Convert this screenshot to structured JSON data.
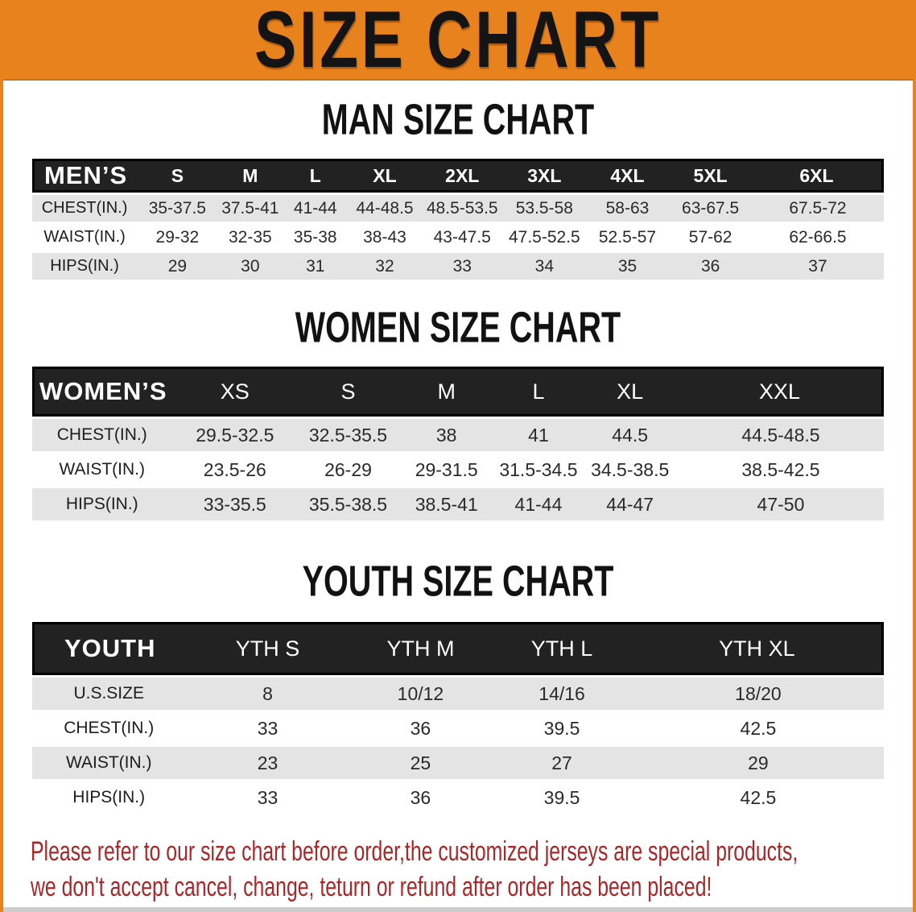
{
  "banner": {
    "title": "SIZE CHART"
  },
  "colors": {
    "banner-orange": "#E8821C",
    "banner-border": "#CF7013",
    "header-black": "#1B1B1B",
    "header-fill": "#222222",
    "row-gray": "#E4E4E4",
    "footer-red": "#A8282A",
    "strip-gray": "#CDCDCD",
    "title-black": "#121212"
  },
  "sections": {
    "men": {
      "title": "MAN SIZE CHART",
      "table": {
        "header_label": "MEN’S",
        "columns": [
          "S",
          "M",
          "L",
          "XL",
          "2XL",
          "3XL",
          "4XL",
          "5XL",
          "6XL"
        ],
        "rows": [
          {
            "label": "CHEST(IN.)",
            "values": [
              "35-37.5",
              "37.5-41",
              "41-44",
              "44-48.5",
              "48.5-53.5",
              "53.5-58",
              "58-63",
              "63-67.5",
              "67.5-72"
            ]
          },
          {
            "label": "WAIST(IN.)",
            "values": [
              "29-32",
              "32-35",
              "35-38",
              "38-43",
              "43-47.5",
              "47.5-52.5",
              "52.5-57",
              "57-62",
              "62-66.5"
            ]
          },
          {
            "label": "HIPS(IN.)",
            "values": [
              "29",
              "30",
              "31",
              "32",
              "33",
              "34",
              "35",
              "36",
              "37"
            ]
          }
        ]
      }
    },
    "women": {
      "title": "WOMEN SIZE CHART",
      "table": {
        "header_label": "WOMEN’S",
        "columns": [
          "XS",
          "S",
          "M",
          "L",
          "XL",
          "XXL"
        ],
        "rows": [
          {
            "label": "CHEST(IN.)",
            "values": [
              "29.5-32.5",
              "32.5-35.5",
              "38",
              "41",
              "44.5",
              "44.5-48.5"
            ]
          },
          {
            "label": "WAIST(IN.)",
            "values": [
              "23.5-26",
              "26-29",
              "29-31.5",
              "31.5-34.5",
              "34.5-38.5",
              "38.5-42.5"
            ]
          },
          {
            "label": "HIPS(IN.)",
            "values": [
              "33-35.5",
              "35.5-38.5",
              "38.5-41",
              "41-44",
              "44-47",
              "47-50"
            ]
          }
        ]
      }
    },
    "youth": {
      "title": "YOUTH SIZE CHART",
      "table": {
        "header_label": "YOUTH",
        "columns": [
          "YTH S",
          "YTH M",
          "YTH L",
          "YTH XL"
        ],
        "rows": [
          {
            "label": "U.S.SIZE",
            "values": [
              "8",
              "10/12",
              "14/16",
              "18/20"
            ]
          },
          {
            "label": "CHEST(IN.)",
            "values": [
              "33",
              "36",
              "39.5",
              "42.5"
            ]
          },
          {
            "label": "WAIST(IN.)",
            "values": [
              "23",
              "25",
              "27",
              "29"
            ]
          },
          {
            "label": "HIPS(IN.)",
            "values": [
              "33",
              "36",
              "39.5",
              "42.5"
            ]
          }
        ]
      }
    }
  },
  "footer": {
    "line1": "Please refer to our size chart before order,the customized jerseys are special products,",
    "line2": "we don't accept cancel, change, teturn or refund after order has been placed!"
  }
}
